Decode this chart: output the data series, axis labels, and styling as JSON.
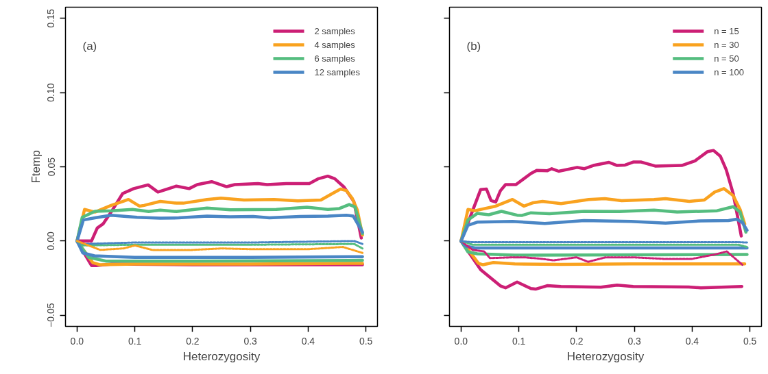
{
  "chart_data": [
    {
      "type": "line",
      "xlabel": "Heterozygosity",
      "ylabel": "Ftemp",
      "annotations": [
        "(a)"
      ],
      "xlim": [
        -0.02,
        0.52
      ],
      "ylim": [
        -0.0575,
        0.1575
      ],
      "xticks": [
        {
          "value": 0,
          "label": "0.0"
        },
        {
          "value": 0.1,
          "label": "0.1"
        },
        {
          "value": 0.2,
          "label": "0.2"
        },
        {
          "value": 0.3,
          "label": "0.3"
        },
        {
          "value": 0.4,
          "label": "0.4"
        },
        {
          "value": 0.5,
          "label": "0.5"
        }
      ],
      "yticks": [
        {
          "value": -0.05,
          "label": "−0.05"
        },
        {
          "value": 0,
          "label": "0.00"
        },
        {
          "value": 0.05,
          "label": "0.05"
        },
        {
          "value": 0.1,
          "label": "0.10"
        },
        {
          "value": 0.15,
          "label": "0.15"
        }
      ],
      "grid": false,
      "legend": "top right",
      "line_style": "solid",
      "series": [
        {
          "name": "2 samples",
          "color": "#cc1f75",
          "x": [
            0,
            0.025,
            0.035,
            0.045,
            0.059,
            0.079,
            0.098,
            0.123,
            0.14,
            0.172,
            0.194,
            0.208,
            0.233,
            0.259,
            0.273,
            0.313,
            0.329,
            0.362,
            0.402,
            0.418,
            0.434,
            0.446,
            0.462,
            0.479,
            0.492
          ],
          "values": [
            0,
            0,
            0.0088,
            0.0115,
            0.0195,
            0.032,
            0.0353,
            0.0378,
            0.033,
            0.037,
            0.0353,
            0.038,
            0.04,
            0.0366,
            0.038,
            0.0387,
            0.038,
            0.0387,
            0.0387,
            0.042,
            0.0437,
            0.042,
            0.0364,
            0.0267,
            0.002
          ]
        },
        {
          "name": "4 samples",
          "color": "#f9a21f",
          "x": [
            0,
            0.013,
            0.031,
            0.059,
            0.079,
            0.089,
            0.108,
            0.116,
            0.144,
            0.172,
            0.184,
            0.225,
            0.249,
            0.289,
            0.341,
            0.382,
            0.422,
            0.442,
            0.456,
            0.466,
            0.476,
            0.485,
            0.494
          ],
          "values": [
            0,
            0.0213,
            0.0195,
            0.024,
            0.0267,
            0.028,
            0.0235,
            0.024,
            0.0267,
            0.0255,
            0.0255,
            0.028,
            0.0289,
            0.0276,
            0.028,
            0.027,
            0.0276,
            0.032,
            0.035,
            0.034,
            0.029,
            0.021,
            0.004
          ]
        },
        {
          "name": "6 samples",
          "color": "#55bd7f",
          "x": [
            0,
            0.009,
            0.031,
            0.059,
            0.096,
            0.124,
            0.144,
            0.172,
            0.225,
            0.265,
            0.345,
            0.398,
            0.434,
            0.454,
            0.471,
            0.481,
            0.494
          ],
          "values": [
            0,
            0.016,
            0.02,
            0.0204,
            0.0213,
            0.0199,
            0.0208,
            0.0199,
            0.0222,
            0.021,
            0.0213,
            0.0228,
            0.0213,
            0.0219,
            0.0246,
            0.023,
            0.005
          ]
        },
        {
          "name": "12 samples",
          "color": "#4a86c5",
          "x": [
            0,
            0.011,
            0.031,
            0.059,
            0.104,
            0.144,
            0.176,
            0.225,
            0.265,
            0.305,
            0.333,
            0.386,
            0.434,
            0.466,
            0.478,
            0.494
          ],
          "values": [
            0,
            0.0142,
            0.0156,
            0.0174,
            0.016,
            0.0154,
            0.0156,
            0.0168,
            0.0163,
            0.0165,
            0.0156,
            0.0165,
            0.0168,
            0.0174,
            0.0168,
            0.006
          ]
        },
        {
          "color": "#cc1f75",
          "x": [
            0,
            0.025,
            0.035,
            0.06,
            0.2,
            0.494
          ],
          "values": [
            0,
            -0.0165,
            -0.0165,
            -0.0155,
            -0.016,
            -0.016
          ]
        },
        {
          "color": "#f9a21f",
          "x": [
            0,
            0.027,
            0.04,
            0.1,
            0.3,
            0.494
          ],
          "values": [
            0,
            -0.0145,
            -0.016,
            -0.0155,
            -0.0155,
            -0.015
          ]
        },
        {
          "color": "#55bd7f",
          "x": [
            0,
            0.02,
            0.05,
            0.2,
            0.494
          ],
          "values": [
            0,
            -0.011,
            -0.0135,
            -0.0135,
            -0.013
          ]
        },
        {
          "color": "#4a86c5",
          "x": [
            0,
            0.01,
            0.03,
            0.1,
            0.3,
            0.494
          ],
          "values": [
            0,
            -0.008,
            -0.01,
            -0.011,
            -0.011,
            -0.0105
          ]
        },
        {
          "color": "#55bd7f",
          "line_style": "dashed",
          "x": [
            0,
            0.01,
            0.1,
            0.3,
            0.48,
            0.494
          ],
          "values": [
            0,
            -0.003,
            -0.0025,
            -0.0025,
            -0.002,
            -0.005
          ]
        },
        {
          "color": "#4a86c5",
          "line_style": "dashed",
          "x": [
            0,
            0.01,
            0.1,
            0.3,
            0.48,
            0.494
          ],
          "values": [
            0,
            -0.002,
            -0.001,
            -0.001,
            0,
            -0.002
          ]
        },
        {
          "color": "#f9a21f",
          "line_style": "dashed",
          "x": [
            0,
            0.02,
            0.04,
            0.08,
            0.1,
            0.13,
            0.2,
            0.25,
            0.3,
            0.4,
            0.46,
            0.494
          ],
          "values": [
            0,
            -0.003,
            -0.006,
            -0.005,
            -0.003,
            -0.006,
            -0.006,
            -0.005,
            -0.0055,
            -0.0055,
            -0.004,
            -0.008
          ]
        }
      ]
    },
    {
      "type": "line",
      "xlabel": "Heterozygosity",
      "annotations": [
        "(b)"
      ],
      "xlim": [
        -0.02,
        0.52
      ],
      "ylim": [
        -0.0575,
        0.1575
      ],
      "tick_labels": "x",
      "xticks": [
        {
          "value": 0,
          "label": "0.0"
        },
        {
          "value": 0.1,
          "label": "0.1"
        },
        {
          "value": 0.2,
          "label": "0.2"
        },
        {
          "value": 0.3,
          "label": "0.3"
        },
        {
          "value": 0.4,
          "label": "0.4"
        },
        {
          "value": 0.5,
          "label": "0.5"
        }
      ],
      "yticks": [
        {
          "value": -0.05,
          "label": null
        },
        {
          "value": 0,
          "label": null
        },
        {
          "value": 0.05,
          "label": null
        },
        {
          "value": 0.1,
          "label": null
        },
        {
          "value": 0.15,
          "label": null
        }
      ],
      "grid": false,
      "legend": "top right",
      "line_style": "solid",
      "series": [
        {
          "name": "n = 15",
          "color": "#cc1f75",
          "x": [
            0,
            0.034,
            0.044,
            0.052,
            0.06,
            0.068,
            0.077,
            0.095,
            0.121,
            0.131,
            0.149,
            0.157,
            0.169,
            0.201,
            0.213,
            0.229,
            0.256,
            0.27,
            0.284,
            0.298,
            0.312,
            0.336,
            0.382,
            0.405,
            0.427,
            0.437,
            0.449,
            0.459,
            0.471,
            0.485
          ],
          "values": [
            0,
            0.0347,
            0.035,
            0.0272,
            0.0263,
            0.0338,
            0.038,
            0.038,
            0.0455,
            0.0476,
            0.0473,
            0.0487,
            0.047,
            0.0496,
            0.0487,
            0.0509,
            0.053,
            0.0509,
            0.0512,
            0.0532,
            0.0532,
            0.0505,
            0.0509,
            0.054,
            0.0603,
            0.061,
            0.057,
            0.048,
            0.032,
            0.0034
          ]
        },
        {
          "name": "n = 30",
          "color": "#f9a21f",
          "x": [
            0,
            0.012,
            0.024,
            0.06,
            0.089,
            0.109,
            0.125,
            0.141,
            0.173,
            0.221,
            0.249,
            0.278,
            0.334,
            0.354,
            0.395,
            0.421,
            0.439,
            0.455,
            0.471,
            0.483,
            0.491
          ],
          "values": [
            0,
            0.0213,
            0.0204,
            0.0235,
            0.028,
            0.0235,
            0.0258,
            0.0267,
            0.0252,
            0.028,
            0.0285,
            0.0272,
            0.028,
            0.0285,
            0.0267,
            0.0276,
            0.033,
            0.0353,
            0.0306,
            0.0213,
            0.0115
          ]
        },
        {
          "name": "n = 50",
          "color": "#55bd7f",
          "x": [
            0,
            0.012,
            0.028,
            0.048,
            0.07,
            0.097,
            0.105,
            0.121,
            0.153,
            0.213,
            0.274,
            0.334,
            0.374,
            0.443,
            0.471,
            0.483,
            0.493
          ],
          "values": [
            0,
            0.0142,
            0.0186,
            0.0177,
            0.02,
            0.0174,
            0.0172,
            0.019,
            0.0184,
            0.02,
            0.0199,
            0.0208,
            0.0195,
            0.0204,
            0.0231,
            0.0195,
            0.006
          ]
        },
        {
          "name": "n = 100",
          "color": "#4a86c5",
          "x": [
            0,
            0.012,
            0.028,
            0.089,
            0.145,
            0.213,
            0.294,
            0.354,
            0.415,
            0.463,
            0.477,
            0.487,
            0.495
          ],
          "values": [
            0,
            0.0106,
            0.0127,
            0.0132,
            0.0118,
            0.0138,
            0.0132,
            0.012,
            0.0136,
            0.0138,
            0.0147,
            0.0124,
            0.0073
          ]
        },
        {
          "color": "#cc1f75",
          "x": [
            0,
            0.034,
            0.068,
            0.077,
            0.097,
            0.121,
            0.129,
            0.149,
            0.173,
            0.242,
            0.27,
            0.298,
            0.394,
            0.415,
            0.486
          ],
          "values": [
            0,
            -0.0193,
            -0.0302,
            -0.0315,
            -0.0276,
            -0.032,
            -0.0324,
            -0.0301,
            -0.0306,
            -0.0311,
            -0.0297,
            -0.0306,
            -0.031,
            -0.0315,
            -0.0306
          ]
        },
        {
          "color": "#f9a21f",
          "x": [
            0,
            0.012,
            0.03,
            0.038,
            0.056,
            0.093,
            0.173,
            0.294,
            0.491
          ],
          "values": [
            0,
            -0.0055,
            -0.015,
            -0.016,
            -0.0145,
            -0.0154,
            -0.0158,
            -0.0154,
            -0.0154
          ]
        },
        {
          "color": "#55bd7f",
          "x": [
            0,
            0.012,
            0.028,
            0.093,
            0.495
          ],
          "values": [
            0,
            -0.0073,
            -0.0086,
            -0.0095,
            -0.0091
          ]
        },
        {
          "color": "#4a86c5",
          "x": [
            0,
            0.008,
            0.024,
            0.495
          ],
          "values": [
            0,
            -0.0034,
            -0.0047,
            -0.0047
          ]
        },
        {
          "color": "#cc1f75",
          "line_style": "dashed",
          "x": [
            0,
            0.02,
            0.04,
            0.05,
            0.09,
            0.11,
            0.14,
            0.16,
            0.2,
            0.22,
            0.25,
            0.3,
            0.35,
            0.4,
            0.44,
            0.46,
            0.475,
            0.487
          ],
          "values": [
            0,
            -0.006,
            -0.007,
            -0.0115,
            -0.011,
            -0.011,
            -0.012,
            -0.013,
            -0.011,
            -0.014,
            -0.011,
            -0.011,
            -0.012,
            -0.012,
            -0.009,
            -0.007,
            -0.012,
            -0.016
          ]
        },
        {
          "color": "#55bd7f",
          "line_style": "dashed",
          "x": [
            0,
            0.02,
            0.2,
            0.48,
            0.495
          ],
          "values": [
            0,
            -0.0025,
            -0.0025,
            -0.0025,
            -0.004
          ]
        },
        {
          "color": "#4a86c5",
          "line_style": "dashed",
          "x": [
            0,
            0.02,
            0.2,
            0.48,
            0.495
          ],
          "values": [
            0,
            -0.0008,
            -0.0008,
            -0.0008,
            -0.001
          ]
        }
      ]
    }
  ]
}
